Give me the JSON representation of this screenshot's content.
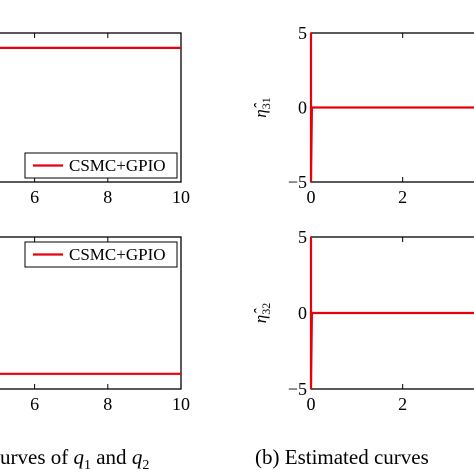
{
  "chart_data": [
    {
      "id": "panel-a-top",
      "type": "line",
      "x_ticks": [
        6,
        8,
        10
      ],
      "y_ticks": [],
      "xlim": [
        5,
        10
      ],
      "series": [
        {
          "name": "CSMC+GPIO",
          "color": "#e8000b",
          "x": [
            5,
            10
          ],
          "y": [
            0.9,
            0.9
          ]
        }
      ],
      "legend": "bottom-right"
    },
    {
      "id": "panel-a-bottom",
      "type": "line",
      "x_ticks": [
        6,
        8,
        10
      ],
      "y_ticks": [],
      "xlim": [
        5,
        10
      ],
      "series": [
        {
          "name": "CSMC+GPIO",
          "color": "#e8000b",
          "x": [
            5,
            10
          ],
          "y": [
            0.1,
            0.1
          ]
        }
      ],
      "legend": "top-right"
    },
    {
      "id": "panel-b-top",
      "type": "line",
      "ylabel": "η̂31",
      "x_ticks": [
        0,
        2
      ],
      "y_ticks": [
        5,
        0,
        -5
      ],
      "xlim": [
        0,
        3.6
      ],
      "ylim": [
        -5,
        5
      ],
      "series": [
        {
          "name": "",
          "color": "#e8000b",
          "x": [
            0,
            0,
            0.02,
            3.6
          ],
          "y": [
            5,
            -5,
            0,
            0
          ]
        }
      ],
      "legend": "none"
    },
    {
      "id": "panel-b-bottom",
      "type": "line",
      "ylabel": "η̂32",
      "x_ticks": [
        0,
        2
      ],
      "y_ticks": [
        5,
        0,
        -5
      ],
      "xlim": [
        0,
        3.6
      ],
      "ylim": [
        -5,
        5
      ],
      "series": [
        {
          "name": "",
          "color": "#e8000b",
          "x": [
            0,
            0,
            0.02,
            3.6
          ],
          "y": [
            5,
            -5,
            0,
            0
          ]
        }
      ],
      "legend": "none"
    }
  ],
  "captions": {
    "left": {
      "prefix": "urves of ",
      "var1": "q",
      "sub1": "1",
      "mid": " and ",
      "var2": "q",
      "sub2": "2"
    },
    "right": {
      "text": "(b) Estimated curves"
    }
  }
}
